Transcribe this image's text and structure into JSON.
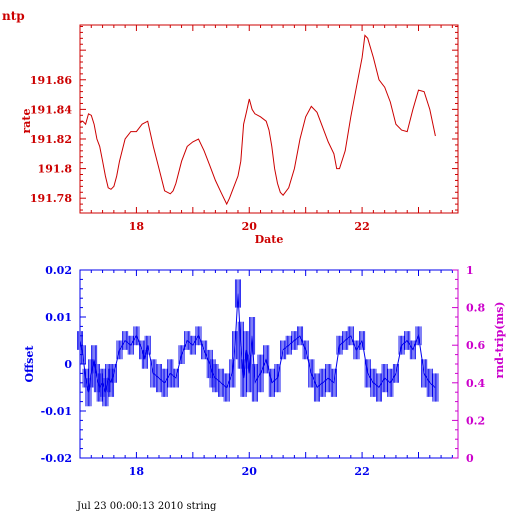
{
  "page_title": "ntp",
  "footer": "Jul 23 00:00:13 2010 string",
  "colors": {
    "red": "#cc0000",
    "blue": "#0000ee",
    "magenta": "#cc00cc"
  },
  "chart_data": [
    {
      "type": "line",
      "title": "ntp",
      "xlabel": "Date",
      "ylabel": "rate",
      "xlim": [
        17,
        23.7
      ],
      "ylim": [
        191.77,
        191.897
      ],
      "x_ticks": [
        18,
        20,
        22
      ],
      "y_ticks": [
        191.78,
        191.8,
        191.82,
        191.84,
        191.86
      ],
      "x_tick_labels": [
        "18",
        "20",
        "22"
      ],
      "y_tick_labels": [
        "191.78",
        "191.8",
        "191.82",
        "191.84",
        "191.86"
      ],
      "color": "#cc0000",
      "series": [
        {
          "x": [
            17.0,
            17.05,
            17.1,
            17.15,
            17.2,
            17.25,
            17.3,
            17.35,
            17.4,
            17.45,
            17.5,
            17.55,
            17.6,
            17.65,
            17.7,
            17.8,
            17.9,
            18.0,
            18.1,
            18.2,
            18.3,
            18.4,
            18.5,
            18.6,
            18.65,
            18.7,
            18.8,
            18.9,
            19.0,
            19.1,
            19.2,
            19.3,
            19.4,
            19.5,
            19.6,
            19.65,
            19.7,
            19.8,
            19.85,
            19.9,
            19.95,
            20.0,
            20.05,
            20.1,
            20.2,
            20.3,
            20.35,
            20.4,
            20.45,
            20.5,
            20.55,
            20.6,
            20.7,
            20.8,
            20.9,
            21.0,
            21.1,
            21.2,
            21.3,
            21.4,
            21.5,
            21.55,
            21.6,
            21.7,
            21.8,
            21.9,
            22.0,
            22.05,
            22.1,
            22.2,
            22.3,
            22.4,
            22.5,
            22.6,
            22.7,
            22.8,
            22.9,
            23.0,
            23.1,
            23.2,
            23.3
          ],
          "y": [
            191.831,
            191.832,
            191.83,
            191.837,
            191.836,
            191.83,
            191.82,
            191.815,
            191.805,
            191.795,
            191.787,
            191.786,
            191.788,
            191.795,
            191.805,
            191.82,
            191.825,
            191.825,
            191.83,
            191.832,
            191.815,
            191.8,
            191.785,
            191.783,
            191.785,
            191.79,
            191.805,
            191.815,
            191.818,
            191.82,
            191.812,
            191.802,
            191.792,
            191.784,
            191.776,
            191.78,
            191.785,
            191.795,
            191.805,
            191.83,
            191.838,
            191.847,
            191.84,
            191.837,
            191.835,
            191.832,
            191.826,
            191.815,
            191.8,
            191.79,
            191.784,
            191.782,
            191.787,
            191.8,
            191.82,
            191.835,
            191.842,
            191.838,
            191.828,
            191.818,
            191.81,
            191.8,
            191.8,
            191.812,
            191.835,
            191.855,
            191.875,
            191.89,
            191.888,
            191.875,
            191.86,
            191.855,
            191.845,
            191.83,
            191.826,
            191.825,
            191.84,
            191.853,
            191.852,
            191.84,
            191.822
          ]
        }
      ]
    },
    {
      "type": "line",
      "title": "",
      "xlabel": "",
      "ylabel": "Offset",
      "ylabel_right": "rnd-trip(ms)",
      "xlim": [
        17,
        23.7
      ],
      "ylim": [
        -0.02,
        0.02
      ],
      "ylim_right": [
        0,
        1
      ],
      "x_ticks": [
        18,
        20,
        22
      ],
      "x_tick_labels": [
        "18",
        "20",
        "22"
      ],
      "y_ticks": [
        -0.02,
        -0.01,
        0,
        0.01,
        0.02
      ],
      "y_tick_labels": [
        "-0.02",
        "-0.01",
        "0",
        "0.01",
        "0.02"
      ],
      "y_ticks_right": [
        0,
        0.2,
        0.4,
        0.6,
        0.8,
        1
      ],
      "y_tick_labels_right": [
        "0",
        "0.2",
        "0.4",
        "0.6",
        "0.8",
        "1"
      ],
      "color": "#0000ee",
      "series": [
        {
          "name": "",
          "x": [
            17.0,
            17.05,
            17.1,
            17.15,
            17.2,
            17.25,
            17.3,
            17.35,
            17.4,
            17.45,
            17.5,
            17.55,
            17.6,
            17.7,
            17.8,
            17.9,
            18.0,
            18.1,
            18.15,
            18.2,
            18.3,
            18.4,
            18.5,
            18.6,
            18.7,
            18.8,
            18.9,
            19.0,
            19.1,
            19.2,
            19.3,
            19.35,
            19.4,
            19.5,
            19.6,
            19.7,
            19.75,
            19.8,
            19.85,
            19.9,
            19.95,
            20.0,
            20.05,
            20.1,
            20.2,
            20.3,
            20.4,
            20.5,
            20.6,
            20.7,
            20.8,
            20.9,
            21.0,
            21.1,
            21.2,
            21.3,
            21.4,
            21.5,
            21.6,
            21.7,
            21.8,
            21.9,
            22.0,
            22.1,
            22.2,
            22.3,
            22.4,
            22.5,
            22.6,
            22.7,
            22.8,
            22.9,
            23.0,
            23.1,
            23.2,
            23.3
          ],
          "y": [
            0.005,
            0.002,
            -0.003,
            -0.006,
            -0.002,
            0.001,
            -0.003,
            -0.005,
            -0.004,
            -0.006,
            -0.003,
            -0.004,
            -0.002,
            0.003,
            0.005,
            0.004,
            0.006,
            0.003,
            0.001,
            0.004,
            -0.002,
            -0.003,
            -0.004,
            -0.002,
            -0.003,
            0.002,
            0.005,
            0.004,
            0.006,
            0.003,
            0.0,
            -0.002,
            -0.003,
            -0.004,
            -0.005,
            -0.002,
            0.004,
            0.015,
            0.004,
            -0.003,
            0.003,
            -0.002,
            0.006,
            -0.004,
            -0.002,
            0.001,
            -0.004,
            -0.003,
            0.003,
            0.004,
            0.005,
            0.006,
            0.003,
            -0.002,
            -0.005,
            -0.004,
            -0.003,
            -0.004,
            0.004,
            0.005,
            0.006,
            0.003,
            0.005,
            -0.002,
            -0.004,
            -0.005,
            -0.003,
            -0.004,
            -0.002,
            0.004,
            0.005,
            0.003,
            0.006,
            -0.002,
            -0.004,
            -0.005
          ],
          "spread": [
            0.002,
            0.002,
            0.002,
            0.003,
            0.003,
            0.003,
            0.003,
            0.003,
            0.003,
            0.003,
            0.003,
            0.003,
            0.002,
            0.002,
            0.002,
            0.002,
            0.002,
            0.002,
            0.002,
            0.002,
            0.003,
            0.003,
            0.003,
            0.003,
            0.002,
            0.002,
            0.002,
            0.002,
            0.002,
            0.002,
            0.003,
            0.003,
            0.003,
            0.003,
            0.003,
            0.003,
            0.003,
            0.003,
            0.005,
            0.004,
            0.004,
            0.004,
            0.004,
            0.004,
            0.004,
            0.003,
            0.003,
            0.003,
            0.002,
            0.002,
            0.002,
            0.002,
            0.002,
            0.003,
            0.003,
            0.003,
            0.003,
            0.003,
            0.002,
            0.002,
            0.002,
            0.002,
            0.002,
            0.003,
            0.003,
            0.003,
            0.003,
            0.003,
            0.002,
            0.002,
            0.002,
            0.002,
            0.002,
            0.003,
            0.003,
            0.003
          ]
        }
      ]
    }
  ]
}
